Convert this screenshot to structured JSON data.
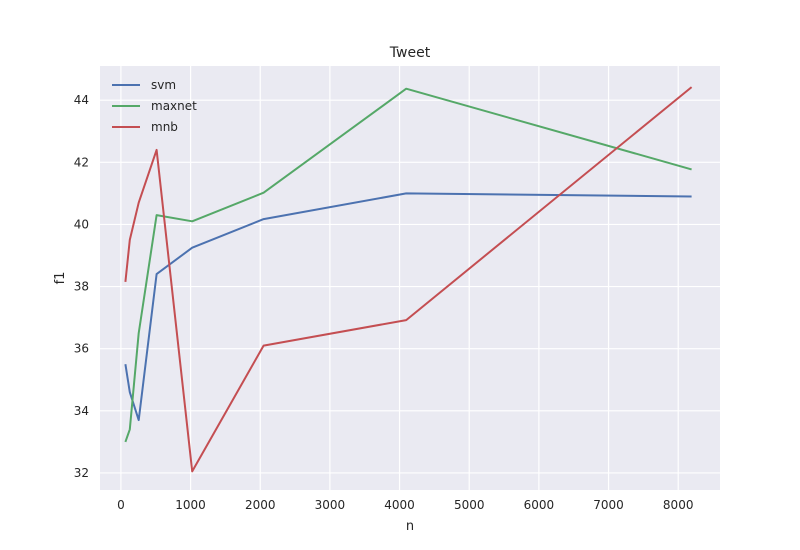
{
  "chart_data": {
    "type": "line",
    "title": "Tweet",
    "xlabel": "n",
    "ylabel": "f1",
    "xlim": [
      -300,
      8600
    ],
    "ylim": [
      31.45,
      45.1
    ],
    "xticks": [
      0,
      1000,
      2000,
      3000,
      4000,
      5000,
      6000,
      7000,
      8000
    ],
    "yticks": [
      32,
      34,
      36,
      38,
      40,
      42,
      44
    ],
    "grid": true,
    "legend_position": "top-left",
    "x": [
      64,
      128,
      256,
      512,
      1024,
      2048,
      4096,
      8192
    ],
    "series": [
      {
        "name": "svm",
        "color": "#4c72b0",
        "values": [
          35.5,
          34.6,
          33.7,
          38.4,
          39.25,
          40.17,
          41.0,
          40.9
        ]
      },
      {
        "name": "maxnet",
        "color": "#55a868",
        "values": [
          33.0,
          33.4,
          36.5,
          40.3,
          40.1,
          41.02,
          44.37,
          41.77
        ]
      },
      {
        "name": "mnb",
        "color": "#c44e52",
        "values": [
          38.15,
          39.5,
          40.7,
          42.4,
          32.05,
          36.1,
          36.92,
          44.42
        ]
      }
    ]
  }
}
